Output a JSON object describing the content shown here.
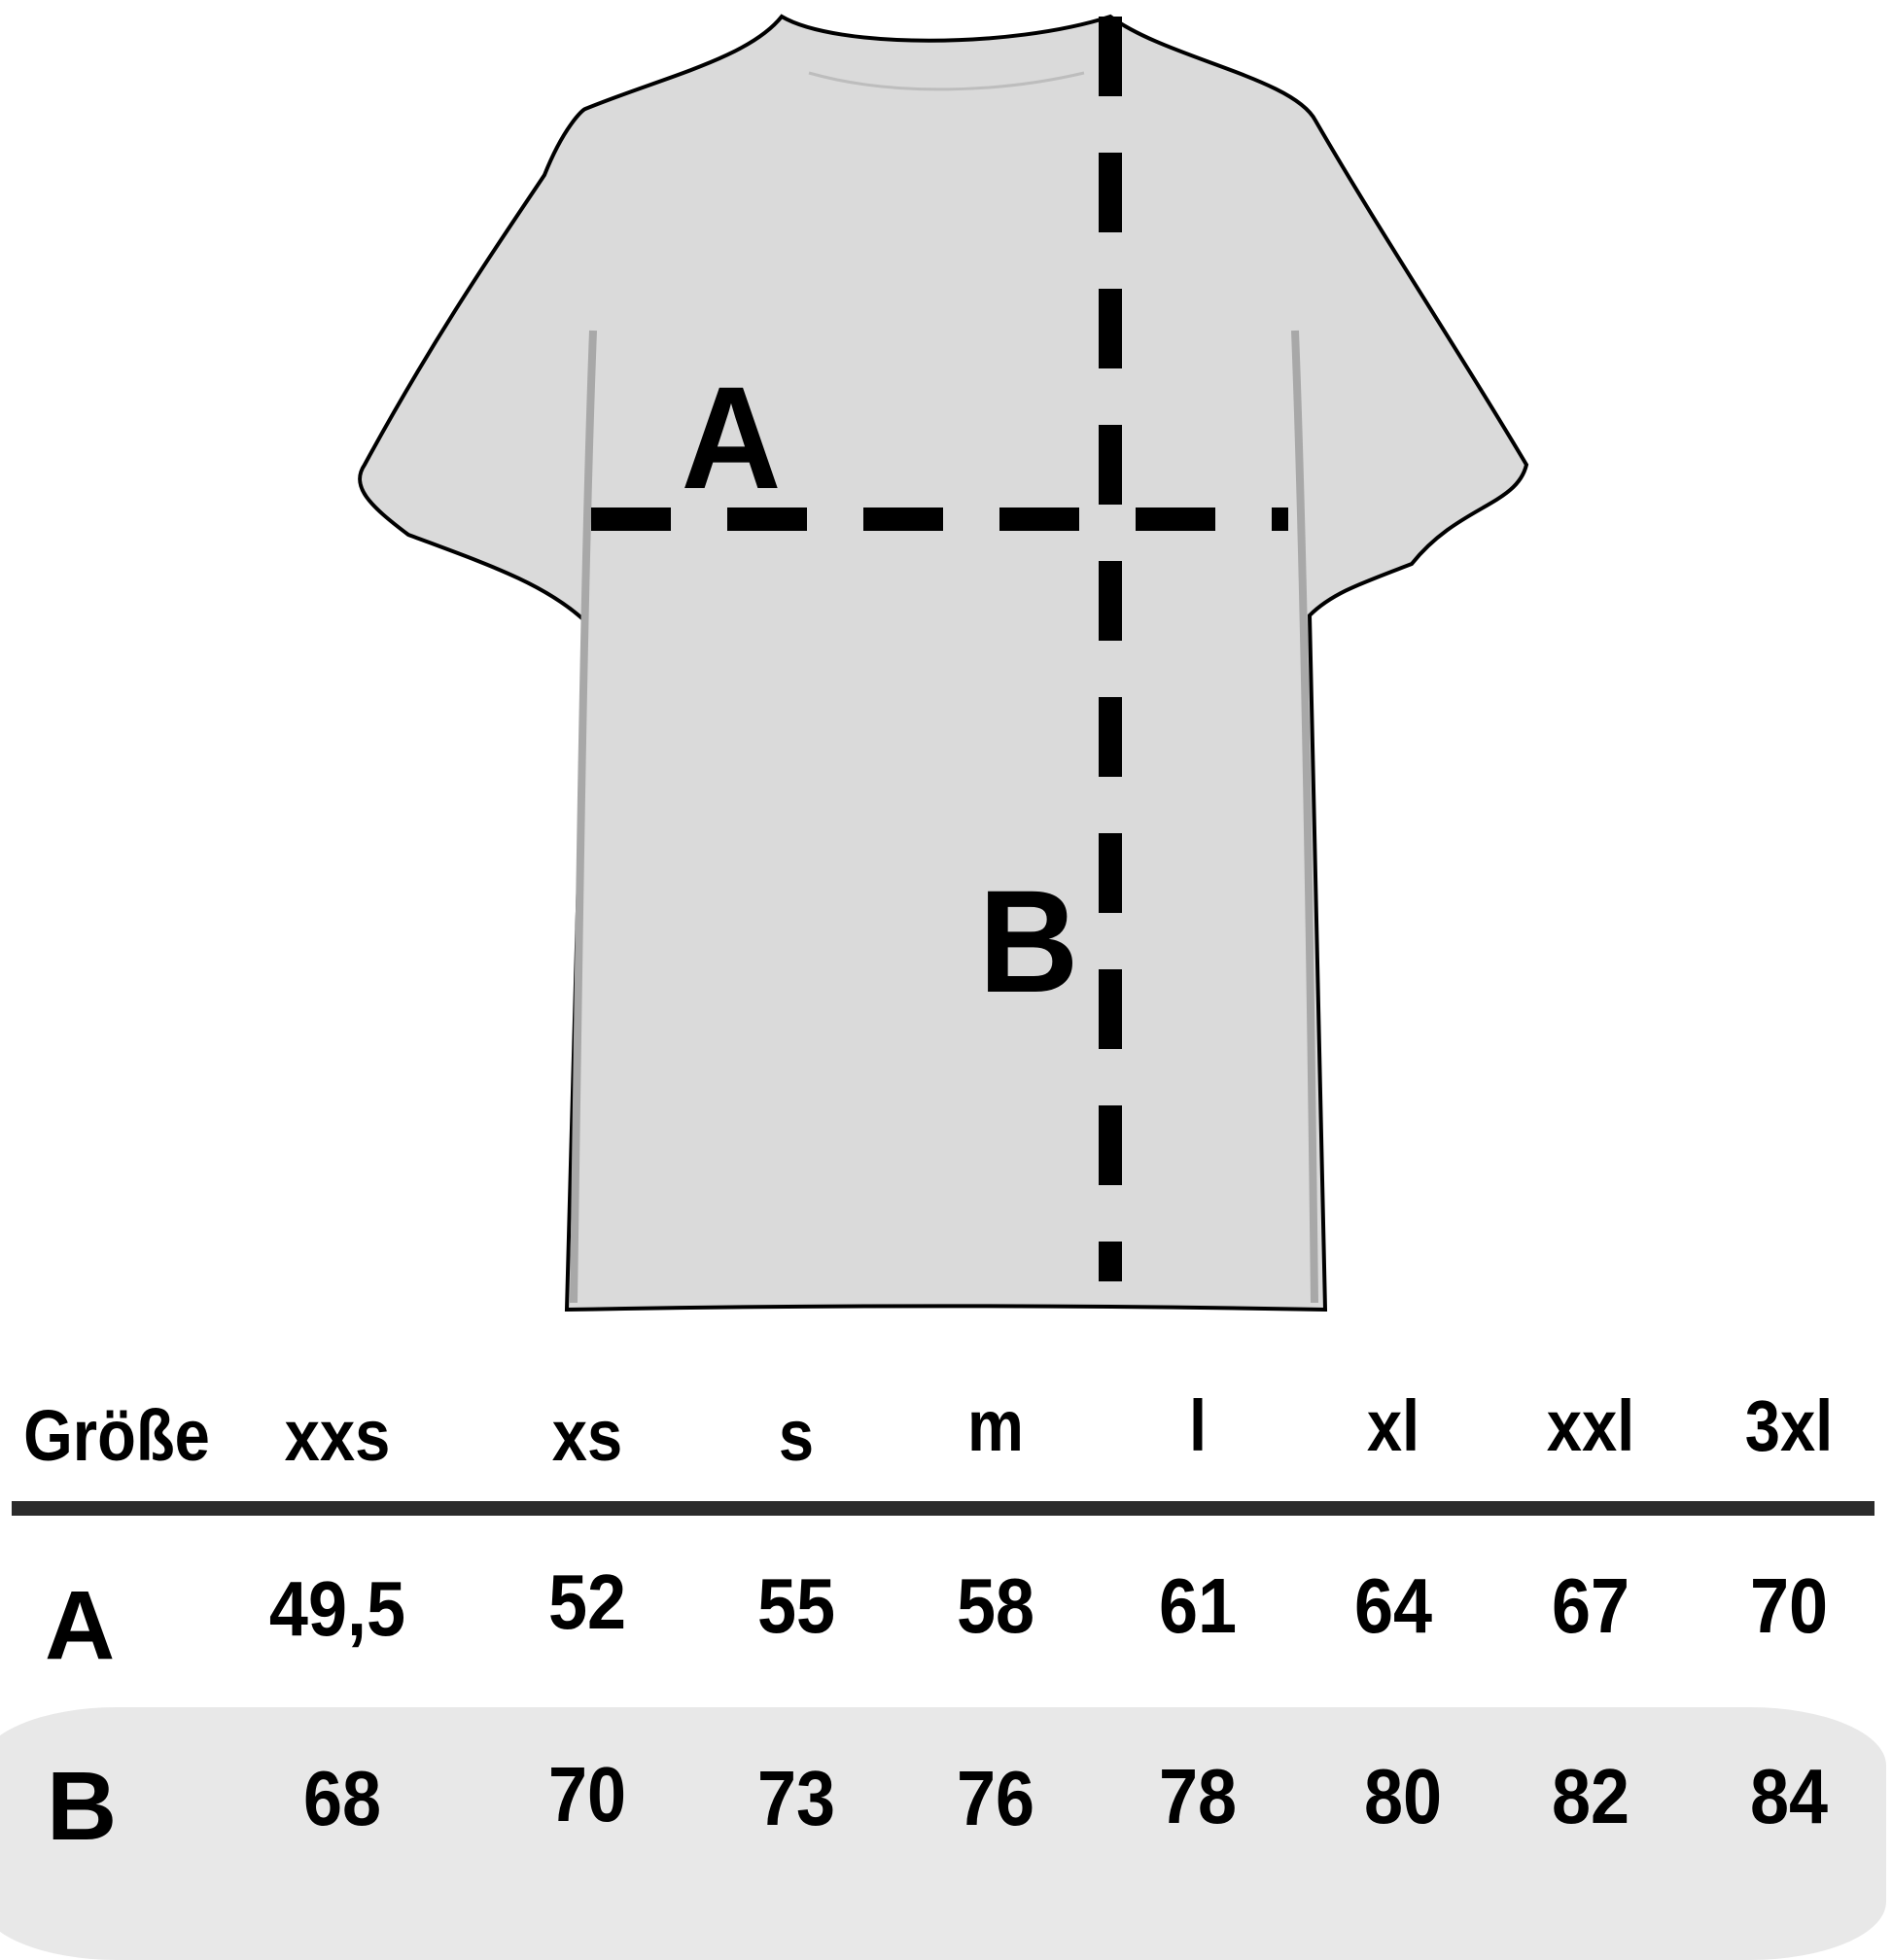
{
  "diagram": {
    "measure_a": "A",
    "measure_b": "B",
    "shirt_color": "#dadada"
  },
  "table": {
    "header_label": "Größe",
    "sizes": [
      "xxs",
      "xs",
      "s",
      "m",
      "l",
      "xl",
      "xxl",
      "3xl"
    ],
    "rows": [
      {
        "label": "A",
        "values": [
          "49,5",
          "52",
          "55",
          "58",
          "61",
          "64",
          "67",
          "70"
        ]
      },
      {
        "label": "B",
        "values": [
          "68",
          "70",
          "73",
          "76",
          "78",
          "80",
          "82",
          "84"
        ]
      }
    ],
    "band_color": "#e8e8e8"
  }
}
